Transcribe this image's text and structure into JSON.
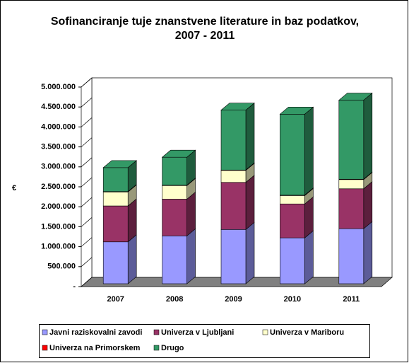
{
  "chart_data": {
    "type": "bar3d-stacked",
    "title_lines": [
      "Sofinanciranje tuje znanstvene literature in baz podatkov,",
      "2007 - 2011"
    ],
    "y_label": "€",
    "categories": [
      "2007",
      "2008",
      "2009",
      "2010",
      "2011"
    ],
    "series": [
      {
        "name": "Javni raziskovalni zavodi",
        "color": "#9999ff",
        "side": "#5c5c99",
        "values": [
          1050000,
          1200000,
          1360000,
          1150000,
          1380000
        ]
      },
      {
        "name": "Univerza v Ljubljani",
        "color": "#993366",
        "side": "#5c1f3d",
        "values": [
          900000,
          920000,
          1180000,
          850000,
          1000000
        ]
      },
      {
        "name": "Univerza v Mariboru",
        "color": "#ffffcc",
        "side": "#99997a",
        "values": [
          350000,
          340000,
          300000,
          210000,
          230000
        ]
      },
      {
        "name": "Univerza na Primorskem",
        "color": "#ff0000",
        "side": "#990000",
        "values": [
          10000,
          10000,
          10000,
          10000,
          10000
        ]
      },
      {
        "name": "Drugo",
        "color": "#339966",
        "side": "#1f5c3d",
        "values": [
          600000,
          700000,
          1500000,
          2030000,
          1980000
        ]
      }
    ],
    "ylim": [
      0,
      5000000
    ],
    "yticks": [
      {
        "value": 0,
        "label": "-"
      },
      {
        "value": 500000,
        "label": "500.000"
      },
      {
        "value": 1000000,
        "label": "1.000.000"
      },
      {
        "value": 1500000,
        "label": "1.500.000"
      },
      {
        "value": 2000000,
        "label": "2.000.000"
      },
      {
        "value": 2500000,
        "label": "2.500.000"
      },
      {
        "value": 3000000,
        "label": "3.000.000"
      },
      {
        "value": 3500000,
        "label": "3.500.000"
      },
      {
        "value": 4000000,
        "label": "4.000.000"
      },
      {
        "value": 4500000,
        "label": "4.500.000"
      },
      {
        "value": 5000000,
        "label": "5.000.000"
      }
    ],
    "legend": "bottom"
  }
}
